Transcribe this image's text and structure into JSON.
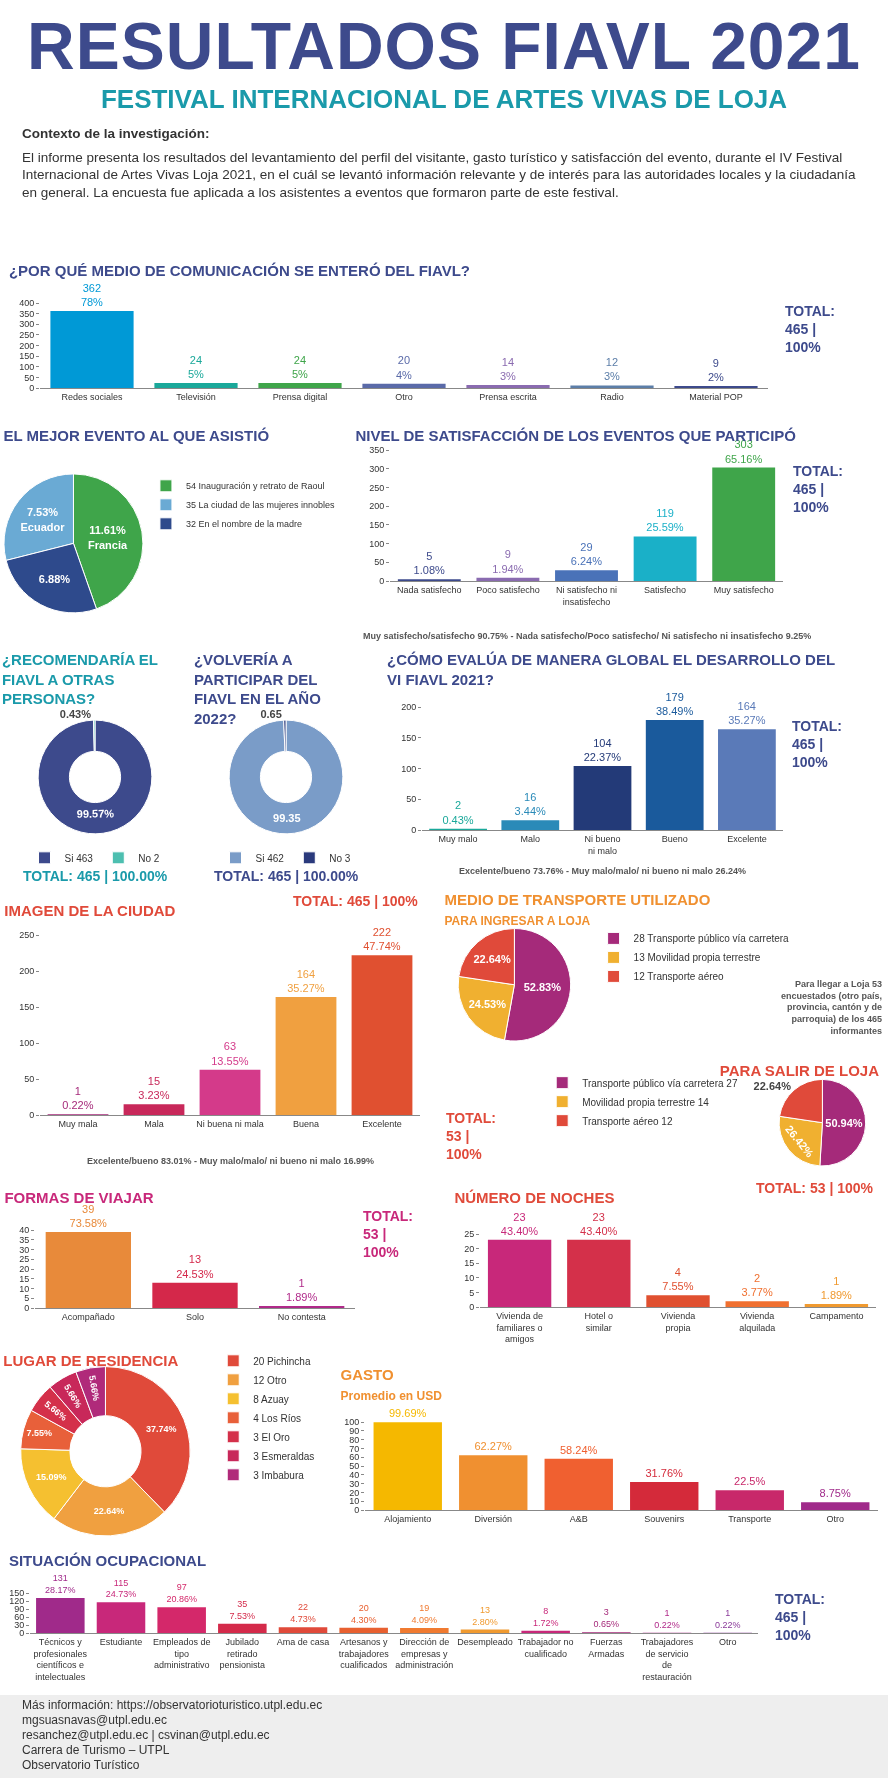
{
  "chart_data": [
    {
      "type": "other",
      "title": "RESULTADOS FIAVL 2021",
      "subtitle": "FESTIVAL INTERNACIONAL DE ARTES VIVAS DE LOJA",
      "annotations": [
        "Contexto de la investigación:",
        "El informe presenta los resultados del levantamiento del perfil del visitante, gasto turístico y satisfacción del evento, durante el IV Festival Internacional de Artes Vivas Loja 2021, en el cuál se levantó información relevante y de interés para las autoridades locales y la ciudadanía en general. La encuesta fue aplicada a los asistentes a eventos que formaron parte de este festival."
      ]
    },
    {
      "type": "bar",
      "title": "¿POR QUÉ MEDIO DE COMUNICACIÓN SE ENTERÓ DEL FIAVL?",
      "categories": [
        "Redes sociales",
        "Televisión",
        "Prensa digital",
        "Otro",
        "Prensa escrita",
        "Radio",
        "Material POP"
      ],
      "values": [
        362,
        24,
        24,
        20,
        14,
        12,
        9
      ],
      "colors": [
        "#0099d6",
        "#1aa89a",
        "#3fa54a",
        "#5a6aa8",
        "#8a6bb0",
        "#5c7ea8",
        "#3d4a8c"
      ],
      "value_labels": [
        "362\n78%",
        "24\n5%",
        "24\n5%",
        "20\n4%",
        "14\n3%",
        "12\n3%",
        "9\n2%"
      ],
      "ylim": [
        0,
        400
      ],
      "yticks": [
        0,
        50,
        100,
        150,
        200,
        250,
        300,
        350,
        400
      ],
      "annotations": [
        "TOTAL: 465 | 100%"
      ]
    },
    {
      "type": "pie",
      "title": "EL MEJOR EVENTO AL QUE ASISTIÓ",
      "categories": [
        "54 Inauguración y retrato de Raoul",
        "35 La ciudad de las mujeres innobles",
        "32 En el nombre de la madre"
      ],
      "values": [
        11.61,
        7.53,
        6.88
      ],
      "colors": [
        "#3fa54a",
        "#6aaad4",
        "#2e4a8c"
      ],
      "value_labels": [
        "11.61%\nFrancia",
        "7.53%\nEcuador",
        "6.88%"
      ],
      "legend": "right"
    },
    {
      "type": "bar",
      "title": "NIVEL DE SATISFACCIÓN DE LOS EVENTOS QUE PARTICIPÓ",
      "categories": [
        "Nada satisfecho",
        "Poco satisfecho",
        "Ni satisfecho ni insatisfecho",
        "Satisfecho",
        "Muy satisfecho"
      ],
      "values": [
        5,
        9,
        29,
        119,
        303
      ],
      "colors": [
        "#3d4a8c",
        "#8a6bb0",
        "#4a72b8",
        "#1ab0c8",
        "#3fa54a"
      ],
      "value_labels": [
        "5\n1.08%",
        "9\n1.94%",
        "29\n6.24%",
        "119\n25.59%",
        "303\n65.16%"
      ],
      "ylim": [
        0,
        350
      ],
      "yticks": [
        0,
        50,
        100,
        150,
        200,
        250,
        300,
        350
      ],
      "annotations": [
        "TOTAL: 465 | 100%",
        "Muy satisfecho/satisfecho 90.75% - Nada satisfecho/Poco satisfecho/ Ni satisfecho ni insatisfecho 9.25%"
      ]
    },
    {
      "type": "donut",
      "title": "¿RECOMENDARÍA EL FIAVL A OTRAS PERSONAS?",
      "categories": [
        "Si 463",
        "No 2"
      ],
      "values": [
        99.57,
        0.43
      ],
      "colors": [
        "#3d4a8c",
        "#4dbfb0"
      ],
      "value_labels": [
        "99.57%",
        "0.43%"
      ],
      "legend": "bottom",
      "annotations": [
        "TOTAL: 465 | 100.00%"
      ]
    },
    {
      "type": "donut",
      "title": "¿VOLVERÍA A PARTICIPAR DEL FIAVL EN EL AÑO 2022?",
      "categories": [
        "Si 462",
        "No 3"
      ],
      "values": [
        99.35,
        0.65
      ],
      "colors": [
        "#7a9cc8",
        "#2a3a7c"
      ],
      "value_labels": [
        "99.35",
        "0.65"
      ],
      "legend": "bottom",
      "annotations": [
        "TOTAL: 465 | 100.00%"
      ]
    },
    {
      "type": "bar",
      "title": "¿CÓMO EVALÚA DE MANERA GLOBAL EL DESARROLLO DEL VI FIAVL 2021?",
      "categories": [
        "Muy malo",
        "Malo",
        "Ni bueno ni malo",
        "Bueno",
        "Excelente"
      ],
      "values": [
        2,
        16,
        104,
        179,
        164
      ],
      "colors": [
        "#1aa89a",
        "#2a8ab8",
        "#233a78",
        "#1a5a9c",
        "#5a7ab8"
      ],
      "value_labels": [
        "2\n0.43%",
        "16\n3.44%",
        "104\n22.37%",
        "179\n38.49%",
        "164\n35.27%"
      ],
      "ylim": [
        0,
        200
      ],
      "yticks": [
        0,
        50,
        100,
        150,
        200
      ],
      "annotations": [
        "TOTAL: 465 | 100%",
        "Excelente/bueno 73.76% - Muy malo/malo/ ni bueno ni malo 26.24%"
      ]
    },
    {
      "type": "pie",
      "title": "MEDIO DE TRANSPORTE UTILIZADO",
      "subtitle": "PARA INGRESAR A LOJA",
      "categories": [
        "28 Transporte público vía carretera",
        "13 Movilidad propia terrestre",
        "12 Transporte aéreo"
      ],
      "values": [
        52.83,
        24.53,
        22.64
      ],
      "colors": [
        "#a52a7a",
        "#f0b030",
        "#e04a3a"
      ],
      "value_labels": [
        "52.83%",
        "24.53%",
        "22.64%"
      ],
      "legend": "right",
      "annotations": [
        "Para llegar a Loja 53 encuestados (otro país, provincia, cantón y de parroquia) de los 465 informantes"
      ]
    },
    {
      "type": "pie",
      "title": "PARA SALIR DE LOJA",
      "categories": [
        "Transporte público vía carretera 27",
        "Movilidad propia terrestre 14",
        "Transporte aéreo 12"
      ],
      "values": [
        50.94,
        26.42,
        22.64
      ],
      "colors": [
        "#a52a7a",
        "#f0b030",
        "#e04a3a"
      ],
      "value_labels": [
        "50.94%",
        "26.42%",
        "22.64%"
      ],
      "legend": "left",
      "annotations": [
        "TOTAL: 53 | 100%"
      ]
    },
    {
      "type": "bar",
      "title": "IMAGEN DE LA CIUDAD",
      "categories": [
        "Muy mala",
        "Mala",
        "Ni buena ni mala",
        "Buena",
        "Excelente"
      ],
      "values": [
        1,
        15,
        63,
        164,
        222
      ],
      "colors": [
        "#a52a7a",
        "#c8285a",
        "#d43a8a",
        "#f0a040",
        "#e05030"
      ],
      "value_labels": [
        "1\n0.22%",
        "15\n3.23%",
        "63\n13.55%",
        "164\n35.27%",
        "222\n47.74%"
      ],
      "ylim": [
        0,
        250
      ],
      "yticks": [
        0,
        50,
        100,
        150,
        200,
        250
      ],
      "annotations": [
        "TOTAL: 465 | 100%",
        "Excelente/bueno 83.01% - Muy malo/malo/ ni bueno ni malo 16.99%"
      ]
    },
    {
      "type": "bar",
      "title": "FORMAS DE VIAJAR",
      "categories": [
        "Acompañado",
        "Solo",
        "No contesta"
      ],
      "values": [
        39,
        13,
        1
      ],
      "colors": [
        "#e88a3a",
        "#d4284a",
        "#b02a8a"
      ],
      "value_labels": [
        "39\n73.58%",
        "13\n24.53%",
        "1\n1.89%"
      ],
      "ylim": [
        0,
        40
      ],
      "yticks": [
        0,
        5,
        10,
        15,
        20,
        25,
        30,
        35,
        40
      ],
      "annotations": [
        "TOTAL: 53 | 100%"
      ]
    },
    {
      "type": "bar",
      "title": "NÚMERO DE NOCHES",
      "categories": [
        "Vivienda de familiares o amigos",
        "Hotel o similar",
        "Vivienda propia",
        "Vivienda alquilada",
        "Campamento"
      ],
      "values": [
        23,
        23,
        4,
        2,
        1
      ],
      "colors": [
        "#c8287a",
        "#d4304a",
        "#e05030",
        "#f07030",
        "#f09a30"
      ],
      "value_labels": [
        "23\n43.40%",
        "23\n43.40%",
        "4\n7.55%",
        "2\n3.77%",
        "1\n1.89%"
      ],
      "ylim": [
        0,
        25
      ],
      "yticks": [
        0,
        5,
        10,
        15,
        20,
        25
      ],
      "annotations": [
        "TOTAL: 53 | 100%"
      ]
    },
    {
      "type": "donut",
      "title": "LUGAR DE RESIDENCIA",
      "categories": [
        "20 Pichincha",
        "12 Otro",
        "8 Azuay",
        "4 Los Ríos",
        "3 El Oro",
        "3 Esmeraldas",
        "3 Imbabura"
      ],
      "values": [
        37.74,
        22.64,
        15.09,
        7.55,
        5.66,
        5.66,
        5.66
      ],
      "colors": [
        "#e04a3a",
        "#f0a040",
        "#f5c030",
        "#e8603a",
        "#d4304a",
        "#c8285a",
        "#b02a7a"
      ],
      "value_labels": [
        "37.74%",
        "22.64%",
        "15.09%",
        "7.55%",
        "5.66%",
        "5.66%",
        "5.66%"
      ],
      "legend": "right"
    },
    {
      "type": "bar",
      "title": "GASTO",
      "subtitle": "Promedio en USD",
      "categories": [
        "Alojamiento",
        "Diversión",
        "A&B",
        "Souvenirs",
        "Transporte",
        "Otro"
      ],
      "values": [
        99.69,
        62.27,
        58.24,
        31.76,
        22.5,
        8.75
      ],
      "colors": [
        "#f5b800",
        "#f09030",
        "#f06030",
        "#d42a3a",
        "#c8286a",
        "#a02a8a"
      ],
      "value_labels": [
        "99.69%",
        "62.27%",
        "58.24%",
        "31.76%",
        "22.5%",
        "8.75%"
      ],
      "ylim": [
        0,
        100
      ],
      "yticks": [
        0,
        10,
        20,
        30,
        40,
        50,
        60,
        70,
        80,
        90,
        100
      ]
    },
    {
      "type": "bar",
      "title": "SITUACIÓN OCUPACIONAL",
      "categories": [
        "Técnicos y profesionales científicos e intelectuales",
        "Estudiante",
        "Empleados de tipo administrativo",
        "Jubilado retirado pensionista",
        "Ama de casa",
        "Artesanos y trabajadores cualificados",
        "Dirección de empresas y administración",
        "Desempleado",
        "Trabajador no cualificado",
        "Fuerzas Armadas",
        "Trabajadores de servicio de restauración",
        "Otro"
      ],
      "values": [
        131,
        115,
        97,
        35,
        22,
        20,
        19,
        13,
        8,
        3,
        1,
        1
      ],
      "colors": [
        "#a02a8a",
        "#c8287a",
        "#d4286a",
        "#d42a4a",
        "#e04a3a",
        "#e86030",
        "#f07a30",
        "#f09a30",
        "#c8287a",
        "#a52a7a",
        "#b02a8a",
        "#8a3a9a"
      ],
      "value_labels": [
        "131\n28.17%",
        "115\n24.73%",
        "97\n20.86%",
        "35\n7.53%",
        "22\n4.73%",
        "20\n4.30%",
        "19\n4.09%",
        "13\n2.80%",
        "8\n1.72%",
        "3\n0.65%",
        "1\n0.22%",
        "1\n0.22%"
      ],
      "ylim": [
        0,
        150
      ],
      "yticks": [
        0,
        30,
        60,
        90,
        120,
        150
      ],
      "annotations": [
        "TOTAL: 465 | 100%"
      ]
    },
    {
      "type": "other",
      "annotations": [
        "Más información: https://observatorioturistico.utpl.edu.ec",
        "mgsuasnavas@utpl.edu.ec",
        "resanchez@utpl.edu.ec | csvinan@utpl.edu.ec",
        "Carrera de Turismo – UTPL",
        "Observatorio Turístico"
      ]
    }
  ]
}
